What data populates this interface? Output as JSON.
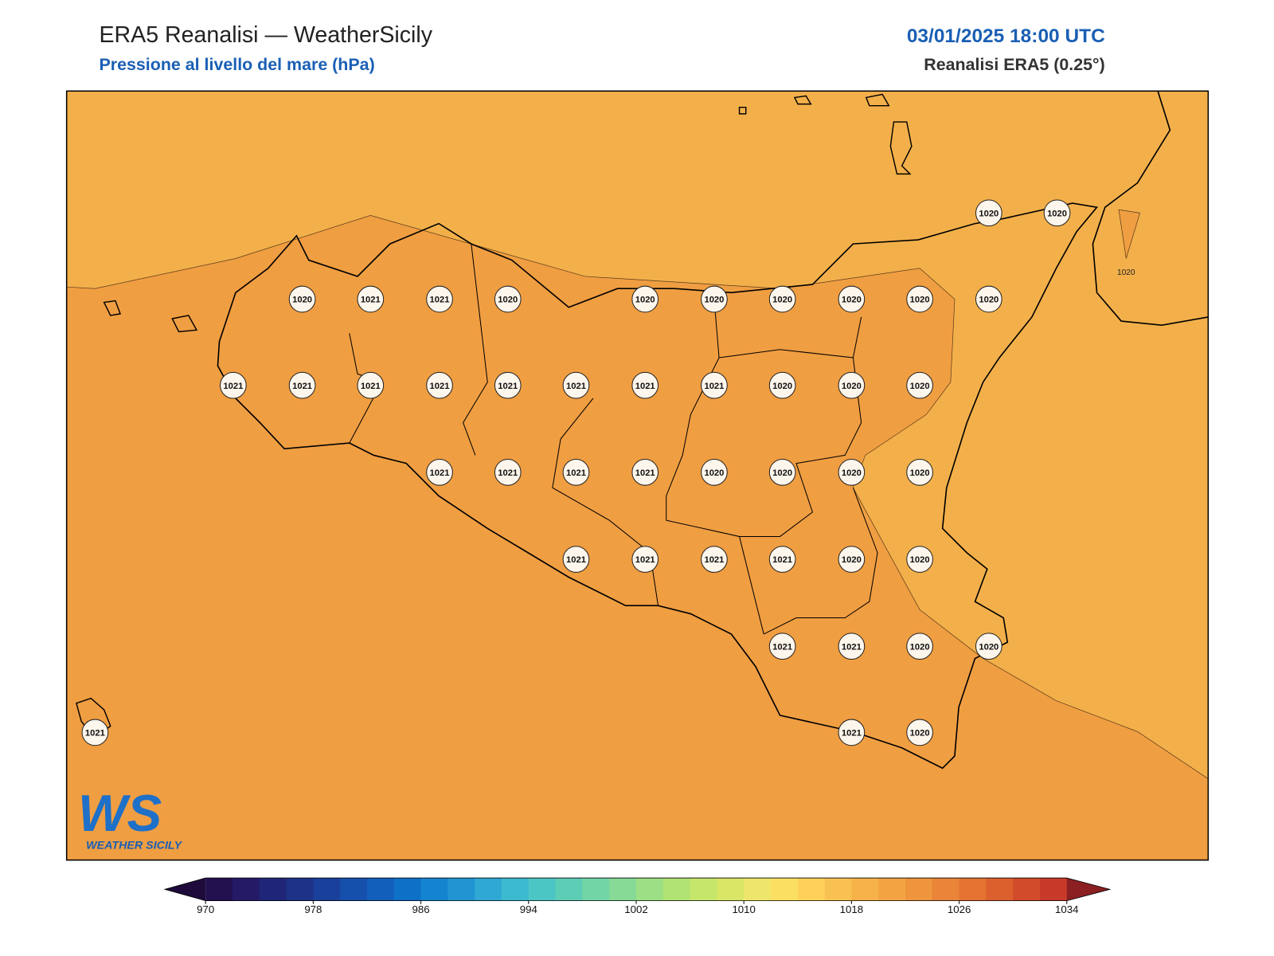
{
  "header": {
    "title": "ERA5 Reanalisi — WeatherSicily",
    "subtitle": "Pressione al livello del mare (hPa)",
    "date": "03/01/2025 18:00 UTC",
    "source": "Reanalisi ERA5 (0.25°)"
  },
  "map": {
    "contour_label": "1020",
    "stations": [
      1020,
      1020,
      1020,
      1021,
      1021,
      1020,
      1020,
      1020,
      1020,
      1020,
      1020,
      1020,
      1021,
      1021,
      1021,
      1021,
      1021,
      1021,
      1021,
      1021,
      1020,
      1020,
      1020,
      1021,
      1021,
      1021,
      1021,
      1020,
      1020,
      1020,
      1020,
      1021,
      1021,
      1021,
      1021,
      1020,
      1020,
      1021,
      1021,
      1020,
      1020,
      1021,
      1021,
      1020
    ]
  },
  "logo": {
    "mark": "WS",
    "text": "WEATHER SICILY"
  },
  "colorbar": {
    "lim": [
      970,
      1034
    ],
    "ticks": [
      970,
      978,
      986,
      994,
      1002,
      1010,
      1018,
      1026,
      1034
    ],
    "under_color": "#1e0b3c",
    "over_color": "#8b1f22",
    "colors": [
      "#23104f",
      "#241a66",
      "#1f2677",
      "#1c3387",
      "#19409a",
      "#1650ad",
      "#125fbb",
      "#0f70c8",
      "#1584d0",
      "#2195d2",
      "#2fa8d4",
      "#3cbad0",
      "#4cc6c4",
      "#5ecdb6",
      "#72d5a6",
      "#86da95",
      "#9cdf84",
      "#b1e374",
      "#c6e66b",
      "#dae666",
      "#ede66a",
      "#fbdf63",
      "#fdd15a",
      "#f9c151",
      "#f6b249",
      "#f2a443",
      "#ee953d",
      "#e98438",
      "#e47332",
      "#dc602e",
      "#d24b2b",
      "#c73a2a"
    ]
  }
}
